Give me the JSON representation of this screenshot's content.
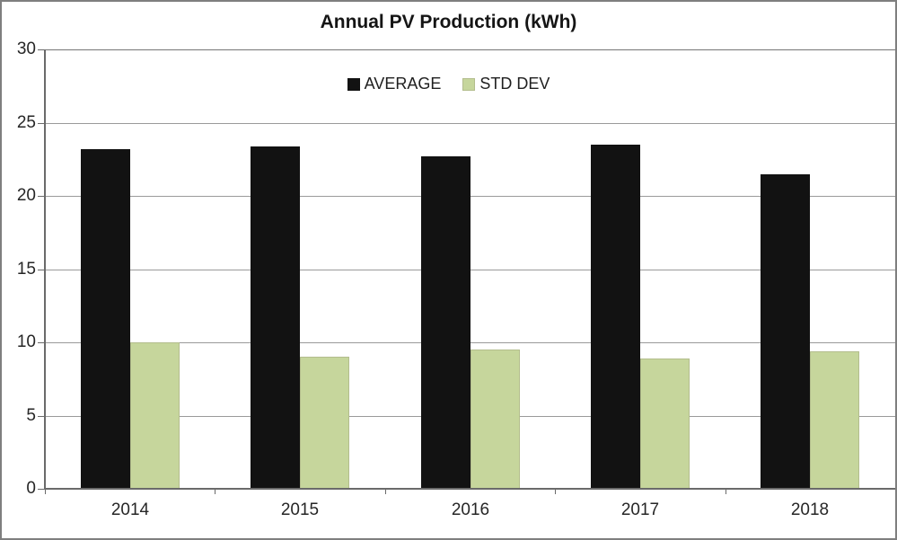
{
  "chart_data": {
    "type": "bar",
    "title": "Annual PV Production (kWh)",
    "categories": [
      "2014",
      "2015",
      "2016",
      "2017",
      "2018"
    ],
    "series": [
      {
        "name": "AVERAGE",
        "color": "#121212",
        "values": [
          23.2,
          23.4,
          22.7,
          23.5,
          21.5
        ]
      },
      {
        "name": "STD DEV",
        "color": "#c6d69c",
        "values": [
          10.0,
          9.0,
          9.5,
          8.9,
          9.4
        ]
      }
    ],
    "xlabel": "",
    "ylabel": "",
    "ylim": [
      0,
      30
    ],
    "yticks": [
      0,
      5,
      10,
      15,
      20,
      25,
      30
    ],
    "grid": true,
    "legend_position": "top-center"
  }
}
